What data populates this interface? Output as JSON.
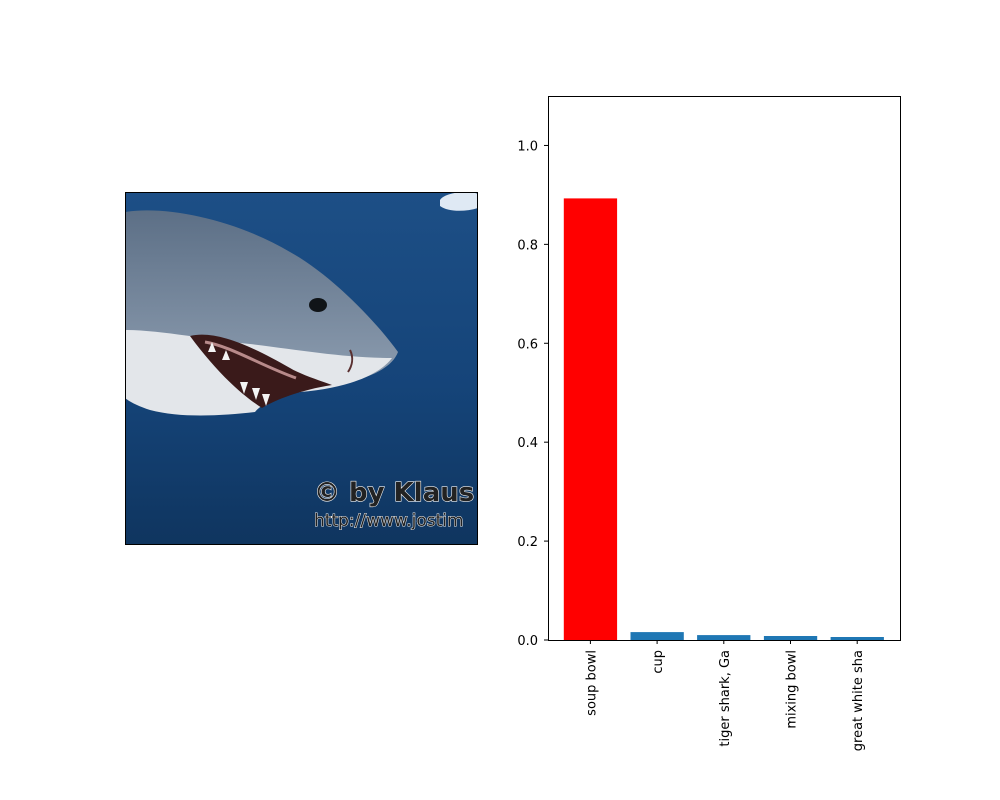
{
  "photo": {
    "subject": "shark-photo",
    "watermark_line1": "© by Klaus",
    "watermark_line2": "http://www.jostim"
  },
  "chart_data": {
    "type": "bar",
    "categories": [
      "soup bowl",
      "cup",
      "tiger shark, Ga",
      "mixing bowl",
      "great white sha"
    ],
    "values": [
      0.893,
      0.016,
      0.01,
      0.008,
      0.006
    ],
    "bar_colors": [
      "#ff0000",
      "#1f77b4",
      "#1f77b4",
      "#1f77b4",
      "#1f77b4"
    ],
    "ylim": [
      0,
      1.1
    ],
    "yticks": [
      0.0,
      0.2,
      0.4,
      0.6,
      0.8,
      1.0
    ],
    "ytick_labels": [
      "0.0",
      "0.2",
      "0.4",
      "0.6",
      "0.8",
      "1.0"
    ],
    "title": "",
    "xlabel": "",
    "ylabel": "",
    "grid": false
  }
}
